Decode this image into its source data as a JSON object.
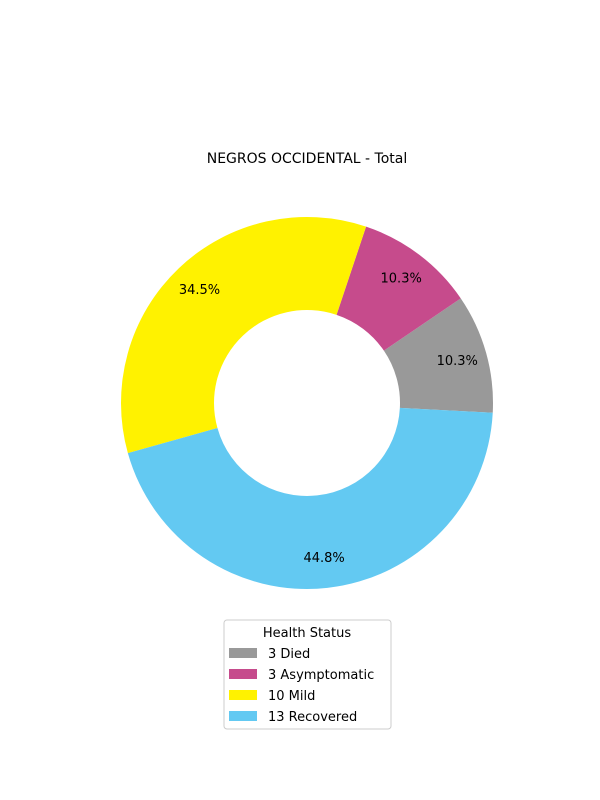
{
  "chart_data": {
    "type": "pie",
    "variant": "donut",
    "title": "NEGROS OCCIDENTAL - Total",
    "legend": {
      "title": "Health Status",
      "placement": "bottom-center"
    },
    "slices": [
      {
        "label": "Died",
        "count": 3,
        "legend_text": "3  Died",
        "percent": 10.3,
        "percent_label": "10.3%",
        "color": "#999999"
      },
      {
        "label": "Asymptomatic",
        "count": 3,
        "legend_text": "3  Asymptomatic",
        "percent": 10.3,
        "percent_label": "10.3%",
        "color": "#C64B8C"
      },
      {
        "label": "Mild",
        "count": 10,
        "legend_text": "10  Mild",
        "percent": 34.5,
        "percent_label": "34.5%",
        "color": "#FFF200"
      },
      {
        "label": "Recovered",
        "count": 13,
        "legend_text": "13  Recovered",
        "percent": 44.8,
        "percent_label": "44.8%",
        "color": "#63C9F2"
      }
    ],
    "start_angle_deg": -3,
    "direction": "counterclockwise"
  }
}
